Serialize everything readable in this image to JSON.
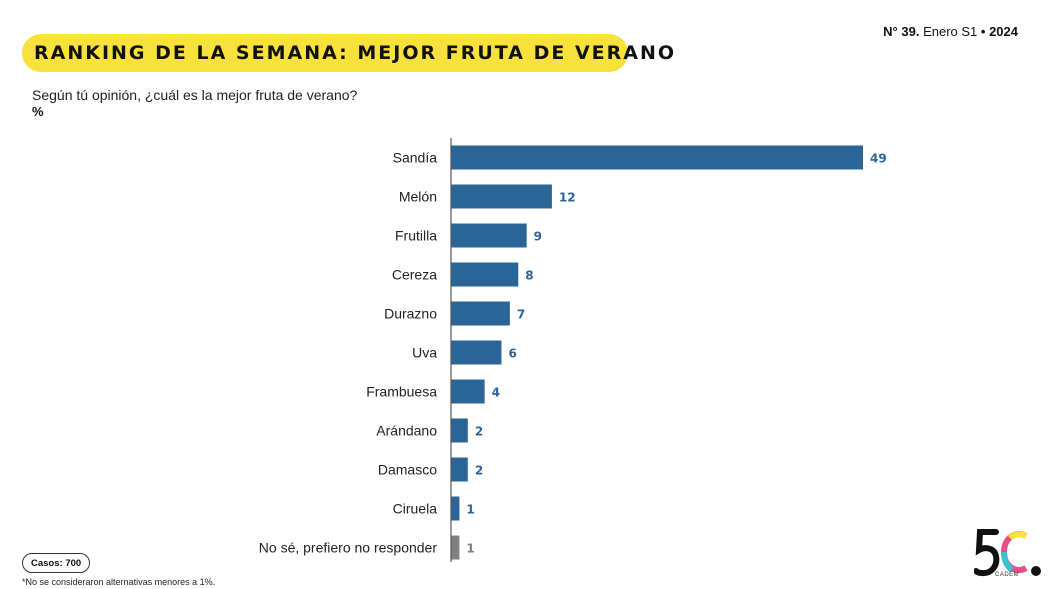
{
  "header": {
    "title": "RANKING DE LA SEMANA: MEJOR FRUTA DE VERANO",
    "issue_prefix": "N° ",
    "issue_number": "39.",
    "issue_period": " Enero S1 ",
    "issue_separator": "•",
    "issue_year": " 2024"
  },
  "question": "Según tú opinión, ¿cuál es la mejor fruta de verano?",
  "unit": "%",
  "footer": {
    "cases": "Casos: 700",
    "note": "*No se consideraron alternativas menores a 1%."
  },
  "logo": {
    "mark": "5C",
    "sub": "CADEM"
  },
  "colors": {
    "bar": "#2b6497",
    "bar_neutral": "#808080",
    "title_bg": "#f7e13a"
  },
  "chart_data": {
    "type": "bar",
    "orientation": "horizontal",
    "categories": [
      "Sandía",
      "Melón",
      "Frutilla",
      "Cereza",
      "Durazno",
      "Uva",
      "Frambuesa",
      "Arándano",
      "Damasco",
      "Ciruela",
      "No sé, prefiero no responder"
    ],
    "values": [
      49,
      12,
      9,
      8,
      7,
      6,
      4,
      2,
      2,
      1,
      1
    ],
    "highlight": [
      false,
      false,
      false,
      false,
      false,
      false,
      false,
      false,
      false,
      false,
      true
    ],
    "xlim": [
      0,
      49
    ],
    "grid": false,
    "legend": "none"
  }
}
